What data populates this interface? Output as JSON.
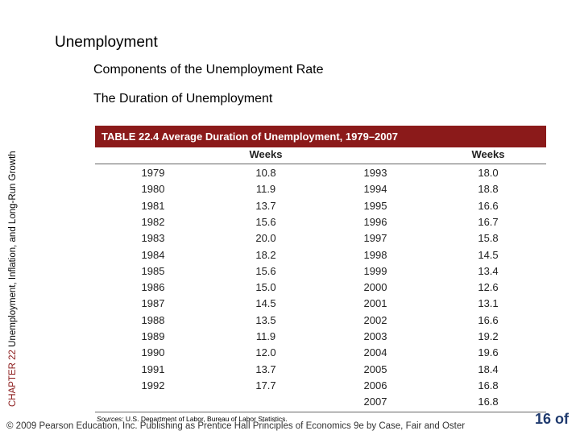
{
  "header": {
    "title": "Unemployment",
    "subtitle": "Components of the Unemployment Rate",
    "section": "The Duration of Unemployment"
  },
  "side": {
    "chapter": "CHAPTER 22",
    "text": "Unemployment, Inflation, and Long-Run Growth"
  },
  "table": {
    "title": "TABLE 22.4  Average Duration of Unemployment, 1979–2007",
    "column_headers": [
      "Weeks",
      "Weeks"
    ],
    "left_rows": [
      [
        "1979",
        "10.8"
      ],
      [
        "1980",
        "11.9"
      ],
      [
        "1981",
        "13.7"
      ],
      [
        "1982",
        "15.6"
      ],
      [
        "1983",
        "20.0"
      ],
      [
        "1984",
        "18.2"
      ],
      [
        "1985",
        "15.6"
      ],
      [
        "1986",
        "15.0"
      ],
      [
        "1987",
        "14.5"
      ],
      [
        "1988",
        "13.5"
      ],
      [
        "1989",
        "11.9"
      ],
      [
        "1990",
        "12.0"
      ],
      [
        "1991",
        "13.7"
      ],
      [
        "1992",
        "17.7"
      ]
    ],
    "right_rows": [
      [
        "1993",
        "18.0"
      ],
      [
        "1994",
        "18.8"
      ],
      [
        "1995",
        "16.6"
      ],
      [
        "1996",
        "16.7"
      ],
      [
        "1997",
        "15.8"
      ],
      [
        "1998",
        "14.5"
      ],
      [
        "1999",
        "13.4"
      ],
      [
        "2000",
        "12.6"
      ],
      [
        "2001",
        "13.1"
      ],
      [
        "2002",
        "16.6"
      ],
      [
        "2003",
        "19.2"
      ],
      [
        "2004",
        "19.6"
      ],
      [
        "2005",
        "18.4"
      ],
      [
        "2006",
        "16.8"
      ],
      [
        "2007",
        "16.8"
      ]
    ],
    "source_label": "Sources:",
    "source": "U.S. Department of Labor, Bureau of Labor Statistics."
  },
  "footer": {
    "copyright": "© 2009 Pearson Education, Inc. Publishing as Prentice Hall  Principles of Economics 9e by Case, Fair and Oster",
    "page": "16 of"
  }
}
